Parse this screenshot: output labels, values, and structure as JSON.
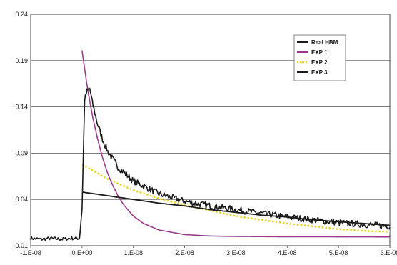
{
  "chart_data": {
    "type": "line",
    "title": "",
    "xlabel": "",
    "ylabel": "",
    "xlim": [
      -1e-08,
      6e-08
    ],
    "ylim": [
      -0.01,
      0.24
    ],
    "grid": "horizontal",
    "legend_position": "top-right",
    "y_ticks": [
      {
        "value": -0.01,
        "label": "-0.01"
      },
      {
        "value": 0.04,
        "label": "0.04"
      },
      {
        "value": 0.09,
        "label": "0.09"
      },
      {
        "value": 0.14,
        "label": "0.14"
      },
      {
        "value": 0.19,
        "label": "0.19"
      },
      {
        "value": 0.24,
        "label": "0.24"
      }
    ],
    "x_ticks": [
      {
        "value": -1e-08,
        "label": "-1.E-08"
      },
      {
        "value": 0,
        "label": "0.E+00"
      },
      {
        "value": 1e-08,
        "label": "1.E-08"
      },
      {
        "value": 2e-08,
        "label": "2.E-08"
      },
      {
        "value": 3e-08,
        "label": "3.E-08"
      },
      {
        "value": 4e-08,
        "label": "4.E-08"
      },
      {
        "value": 5e-08,
        "label": "5.E-08"
      },
      {
        "value": 6e-08,
        "label": "6.E-08"
      }
    ],
    "series": [
      {
        "name": "Real HBM",
        "color": "#1a1a1a",
        "style": "noisy-solid",
        "x": [
          -1e-08,
          -8e-09,
          -6e-09,
          -4e-09,
          -2e-09,
          -5e-10,
          0,
          5e-10,
          1e-09,
          1.5e-09,
          2e-09,
          3e-09,
          4e-09,
          5e-09,
          7e-09,
          1e-08,
          1.5e-08,
          2e-08,
          2.5e-08,
          3e-08,
          3.5e-08,
          4e-08,
          4.5e-08,
          5e-08,
          5.5e-08,
          6e-08
        ],
        "y": [
          -0.002,
          -0.003,
          -0.002,
          -0.003,
          -0.002,
          -0.002,
          0.03,
          0.148,
          0.157,
          0.16,
          0.145,
          0.122,
          0.105,
          0.092,
          0.075,
          0.06,
          0.046,
          0.038,
          0.033,
          0.029,
          0.025,
          0.021,
          0.018,
          0.015,
          0.013,
          0.011
        ]
      },
      {
        "name": "EXP 1",
        "color": "#9b3a8c",
        "style": "solid",
        "x": [
          0,
          1e-09,
          2e-09,
          3e-09,
          4e-09,
          5e-09,
          6e-09,
          7e-09,
          8e-09,
          1e-08,
          1.2e-08,
          1.5e-08,
          2e-08,
          2.5e-08,
          3e-08,
          4e-08,
          5e-08,
          6e-08
        ],
        "y": [
          0.201,
          0.162,
          0.131,
          0.106,
          0.085,
          0.068,
          0.055,
          0.044,
          0.035,
          0.022,
          0.014,
          0.007,
          0.002,
          0.0005,
          0.0,
          -0.0003,
          -0.0004,
          -0.0005
        ]
      },
      {
        "name": "EXP 2",
        "color": "#e6d21e",
        "style": "dotted",
        "x": [
          0,
          5e-09,
          1e-08,
          1.5e-08,
          2e-08,
          2.5e-08,
          3e-08,
          3.5e-08,
          4e-08,
          4.5e-08,
          5e-08,
          5.5e-08,
          6e-08
        ],
        "y": [
          0.078,
          0.062,
          0.05,
          0.041,
          0.034,
          0.028,
          0.022,
          0.018,
          0.014,
          0.011,
          0.008,
          0.006,
          0.005
        ]
      },
      {
        "name": "EXP 3",
        "color": "#1a1a1a",
        "style": "solid",
        "x": [
          0,
          5e-09,
          1e-08,
          1.5e-08,
          2e-08,
          2.5e-08,
          3e-08,
          3.5e-08,
          4e-08,
          4.5e-08,
          5e-08,
          5.5e-08,
          6e-08
        ],
        "y": [
          0.048,
          0.044,
          0.04,
          0.036,
          0.033,
          0.029,
          0.026,
          0.023,
          0.021,
          0.018,
          0.016,
          0.014,
          0.012
        ]
      }
    ]
  }
}
